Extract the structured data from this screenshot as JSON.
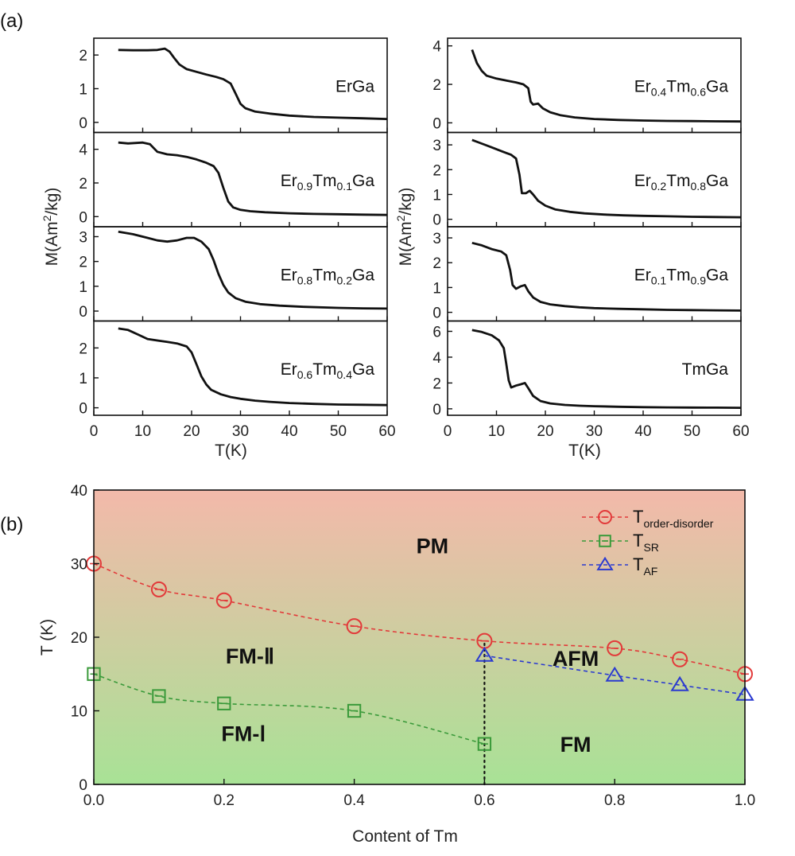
{
  "panel_labels": [
    "(a)",
    "(b)"
  ],
  "chart_data": [
    {
      "type": "line",
      "panel": "(a)",
      "column": "left",
      "xlabel": "T(K)",
      "ylabel": "M(Am²/kg)",
      "xlim": [
        0,
        60
      ],
      "xticks": [
        0,
        10,
        20,
        30,
        40,
        50,
        60
      ],
      "line_color": "#111111",
      "subplots": [
        {
          "sample": {
            "pre": "ErGa",
            "s1": "",
            "mid": "",
            "s2": "",
            "post": ""
          },
          "ylim": [
            -0.3,
            2.5
          ],
          "yticks": [
            0,
            1,
            2
          ],
          "x": [
            5,
            8,
            11,
            13,
            14.5,
            15.5,
            16.5,
            17.5,
            19,
            21,
            23,
            25,
            26.5,
            28,
            29,
            30,
            31,
            33,
            36,
            40,
            45,
            50,
            55,
            60
          ],
          "y": [
            2.15,
            2.14,
            2.14,
            2.15,
            2.19,
            2.1,
            1.9,
            1.72,
            1.58,
            1.5,
            1.42,
            1.35,
            1.28,
            1.15,
            0.85,
            0.55,
            0.42,
            0.32,
            0.26,
            0.2,
            0.16,
            0.14,
            0.12,
            0.1
          ]
        },
        {
          "sample": {
            "pre": "Er",
            "s1": "0.9",
            "mid": "Tm",
            "s2": "0.1",
            "post": "Ga"
          },
          "ylim": [
            -0.6,
            5.0
          ],
          "yticks": [
            0,
            2,
            4
          ],
          "x": [
            5,
            7,
            10,
            11.5,
            13,
            15,
            17,
            19,
            21,
            23,
            24.5,
            25.5,
            26.5,
            27.5,
            28.5,
            30,
            32,
            35,
            40,
            45,
            50,
            55,
            60
          ],
          "y": [
            4.4,
            4.35,
            4.4,
            4.3,
            3.85,
            3.7,
            3.65,
            3.55,
            3.4,
            3.2,
            3.0,
            2.6,
            1.7,
            0.9,
            0.55,
            0.4,
            0.32,
            0.26,
            0.2,
            0.16,
            0.14,
            0.12,
            0.1
          ]
        },
        {
          "sample": {
            "pre": "Er",
            "s1": "0.8",
            "mid": "Tm",
            "s2": "0.2",
            "post": "Ga"
          },
          "ylim": [
            -0.4,
            3.4
          ],
          "yticks": [
            0,
            1,
            2,
            3
          ],
          "x": [
            5,
            8,
            11,
            13,
            15,
            17,
            19,
            20.5,
            22,
            23.5,
            24.5,
            25.5,
            26.5,
            27.5,
            29,
            31,
            34,
            38,
            43,
            50,
            55,
            60
          ],
          "y": [
            3.2,
            3.1,
            2.95,
            2.85,
            2.8,
            2.85,
            2.95,
            2.95,
            2.8,
            2.5,
            2.05,
            1.5,
            1.05,
            0.75,
            0.52,
            0.38,
            0.28,
            0.22,
            0.17,
            0.13,
            0.11,
            0.1
          ]
        },
        {
          "sample": {
            "pre": "Er",
            "s1": "0.6",
            "mid": "Tm",
            "s2": "0.4",
            "post": "Ga"
          },
          "ylim": [
            -0.25,
            2.9
          ],
          "yticks": [
            0,
            1,
            2
          ],
          "x": [
            5,
            7,
            9,
            11,
            13,
            15,
            17,
            19,
            20,
            21,
            22,
            23,
            24,
            26,
            28,
            30,
            33,
            36,
            40,
            45,
            50,
            55,
            60
          ],
          "y": [
            2.65,
            2.6,
            2.45,
            2.3,
            2.25,
            2.2,
            2.15,
            2.05,
            1.85,
            1.45,
            1.05,
            0.78,
            0.6,
            0.45,
            0.36,
            0.3,
            0.24,
            0.2,
            0.16,
            0.13,
            0.11,
            0.1,
            0.09
          ]
        }
      ]
    },
    {
      "type": "line",
      "panel": "(a)",
      "column": "right",
      "xlabel": "T(K)",
      "ylabel": "M(Am²/kg)",
      "xlim": [
        0,
        60
      ],
      "xticks": [
        0,
        10,
        20,
        30,
        40,
        50,
        60
      ],
      "line_color": "#111111",
      "subplots": [
        {
          "sample": {
            "pre": "Er",
            "s1": "0.4",
            "mid": "Tm",
            "s2": "0.6",
            "post": "Ga"
          },
          "ylim": [
            -0.5,
            4.4
          ],
          "yticks": [
            0,
            2,
            4
          ],
          "x": [
            5,
            6,
            7,
            8,
            10,
            12,
            14,
            15.5,
            16.5,
            17,
            17.5,
            18.5,
            19.5,
            21,
            23,
            26,
            30,
            35,
            40,
            45,
            50,
            55,
            60
          ],
          "y": [
            3.8,
            3.1,
            2.7,
            2.45,
            2.3,
            2.2,
            2.1,
            2.0,
            1.8,
            1.1,
            0.95,
            1.0,
            0.75,
            0.55,
            0.4,
            0.28,
            0.2,
            0.15,
            0.12,
            0.1,
            0.09,
            0.08,
            0.07
          ]
        },
        {
          "sample": {
            "pre": "Er",
            "s1": "0.2",
            "mid": "Tm",
            "s2": "0.8",
            "post": "Ga"
          },
          "ylim": [
            -0.3,
            3.5
          ],
          "yticks": [
            0,
            1,
            2,
            3
          ],
          "x": [
            5,
            7,
            9,
            11,
            13,
            14,
            14.7,
            15.2,
            16,
            16.8,
            17.5,
            18.5,
            20,
            22,
            25,
            28,
            32,
            36,
            40,
            45,
            50,
            55,
            60
          ],
          "y": [
            3.2,
            3.05,
            2.9,
            2.75,
            2.6,
            2.45,
            1.8,
            1.05,
            1.05,
            1.15,
            1.0,
            0.75,
            0.55,
            0.4,
            0.3,
            0.24,
            0.19,
            0.16,
            0.14,
            0.12,
            0.1,
            0.09,
            0.08
          ]
        },
        {
          "sample": {
            "pre": "Er",
            "s1": "0.1",
            "mid": "Tm",
            "s2": "0.9",
            "post": "Ga"
          },
          "ylim": [
            -0.35,
            3.45
          ],
          "yticks": [
            0,
            1,
            2,
            3
          ],
          "x": [
            5,
            7,
            9,
            11,
            12,
            12.8,
            13.3,
            14,
            15,
            15.8,
            16.5,
            17.5,
            19,
            21,
            24,
            27,
            30,
            35,
            40,
            45,
            50,
            55,
            60
          ],
          "y": [
            2.8,
            2.7,
            2.55,
            2.45,
            2.3,
            1.7,
            1.1,
            0.95,
            1.05,
            1.1,
            0.85,
            0.6,
            0.42,
            0.32,
            0.25,
            0.2,
            0.17,
            0.14,
            0.12,
            0.1,
            0.09,
            0.08,
            0.07
          ]
        },
        {
          "sample": {
            "pre": "TmGa",
            "s1": "",
            "mid": "",
            "s2": "",
            "post": ""
          },
          "ylim": [
            -0.5,
            6.8
          ],
          "yticks": [
            0,
            2,
            4,
            6
          ],
          "x": [
            5,
            7,
            9,
            10.5,
            11.5,
            12,
            12.5,
            13,
            14,
            15,
            15.8,
            16.5,
            17.5,
            19,
            21,
            24,
            27,
            30,
            35,
            40,
            45,
            50,
            55,
            60
          ],
          "y": [
            6.1,
            5.95,
            5.7,
            5.3,
            4.7,
            3.5,
            2.2,
            1.65,
            1.8,
            1.9,
            2.0,
            1.6,
            1.0,
            0.6,
            0.42,
            0.3,
            0.24,
            0.2,
            0.16,
            0.13,
            0.11,
            0.1,
            0.09,
            0.08
          ]
        }
      ]
    },
    {
      "type": "line",
      "panel": "(b)",
      "xlabel": "Content of Tm",
      "ylabel": "T (K)",
      "xlim": [
        0.0,
        1.0
      ],
      "ylim": [
        0,
        40
      ],
      "xticks": [
        0.0,
        0.2,
        0.4,
        0.6,
        0.8,
        1.0
      ],
      "yticks": [
        0,
        10,
        20,
        30,
        40
      ],
      "background_gradient": {
        "top": "#f3b9aa",
        "bottom": "#a8e296"
      },
      "legend_position": "top-right",
      "series": [
        {
          "name": {
            "base": "T",
            "sub": "order-disorder"
          },
          "color": "#e23a3a",
          "marker": "circle",
          "x": [
            0.0,
            0.1,
            0.2,
            0.4,
            0.6,
            0.8,
            0.9,
            1.0
          ],
          "y": [
            30,
            26.5,
            25,
            21.5,
            19.5,
            18.5,
            17,
            15
          ]
        },
        {
          "name": {
            "base": "T",
            "sub": "SR"
          },
          "color": "#3a9a3a",
          "marker": "square",
          "x": [
            0.0,
            0.1,
            0.2,
            0.4,
            0.6
          ],
          "y": [
            15,
            12,
            11,
            10,
            5.5
          ]
        },
        {
          "name": {
            "base": "T",
            "sub": "AF"
          },
          "color": "#2a3ad0",
          "marker": "triangle",
          "x": [
            0.6,
            0.8,
            0.9,
            1.0
          ],
          "y": [
            17.5,
            14.8,
            13.5,
            12.2
          ]
        }
      ],
      "vertical_line": {
        "x": 0.6,
        "y_from": 0,
        "y_to": 19.5,
        "style": "dotted"
      },
      "regions": [
        {
          "label": "PM",
          "x": 0.52,
          "y": 32.5
        },
        {
          "label": "FM-Ⅱ",
          "x": 0.24,
          "y": 17.5
        },
        {
          "label": "AFM",
          "x": 0.74,
          "y": 17.2
        },
        {
          "label": "FM-Ⅰ",
          "x": 0.23,
          "y": 7.0
        },
        {
          "label": "FM",
          "x": 0.74,
          "y": 5.5
        }
      ]
    }
  ]
}
